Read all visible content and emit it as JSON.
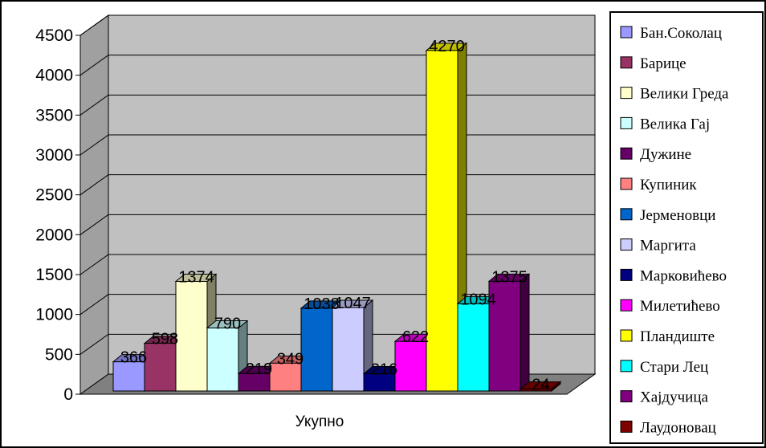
{
  "chart_data": {
    "type": "bar",
    "categories": [
      "Укупно"
    ],
    "series": [
      {
        "name": "Бан.Соколац",
        "values": [
          366
        ],
        "color": "#9999FF"
      },
      {
        "name": "Барице",
        "values": [
          598
        ],
        "color": "#993366"
      },
      {
        "name": "Велики Греда",
        "values": [
          1374
        ],
        "color": "#FFFFCC"
      },
      {
        "name": "Велика Гај",
        "values": [
          790
        ],
        "color": "#CCFFFF"
      },
      {
        "name": "Дужине",
        "values": [
          219
        ],
        "color": "#660066"
      },
      {
        "name": "Купиник",
        "values": [
          349
        ],
        "color": "#FF8080"
      },
      {
        "name": "Јерменовци",
        "values": [
          1038
        ],
        "color": "#0066CC"
      },
      {
        "name": "Маргита",
        "values": [
          1047
        ],
        "color": "#CCCCFF"
      },
      {
        "name": "Марковићево",
        "values": [
          216
        ],
        "color": "#000080"
      },
      {
        "name": "Милетићево",
        "values": [
          622
        ],
        "color": "#FF00FF"
      },
      {
        "name": "Пландиште",
        "values": [
          4270
        ],
        "color": "#FFFF00"
      },
      {
        "name": "Стари Лец",
        "values": [
          1094
        ],
        "color": "#00FFFF"
      },
      {
        "name": "Хајдучица",
        "values": [
          1375
        ],
        "color": "#800080"
      },
      {
        "name": "Лаудоновац",
        "values": [
          24
        ],
        "color": "#800000"
      }
    ],
    "data_labels": [
      "366",
      "598",
      "1374",
      "790",
      "219",
      "349",
      "1038",
      "1047",
      "216",
      "622",
      "4270",
      "1094",
      "1375",
      "24"
    ],
    "y_ticks": [
      "0",
      "500",
      "1000",
      "1500",
      "2000",
      "2500",
      "3000",
      "3500",
      "4000",
      "4500"
    ],
    "ylim": [
      0,
      4500
    ],
    "grid": true,
    "legend_position": "right",
    "style": "3d-clustered-column",
    "wall_color": "#C0C0C0"
  }
}
